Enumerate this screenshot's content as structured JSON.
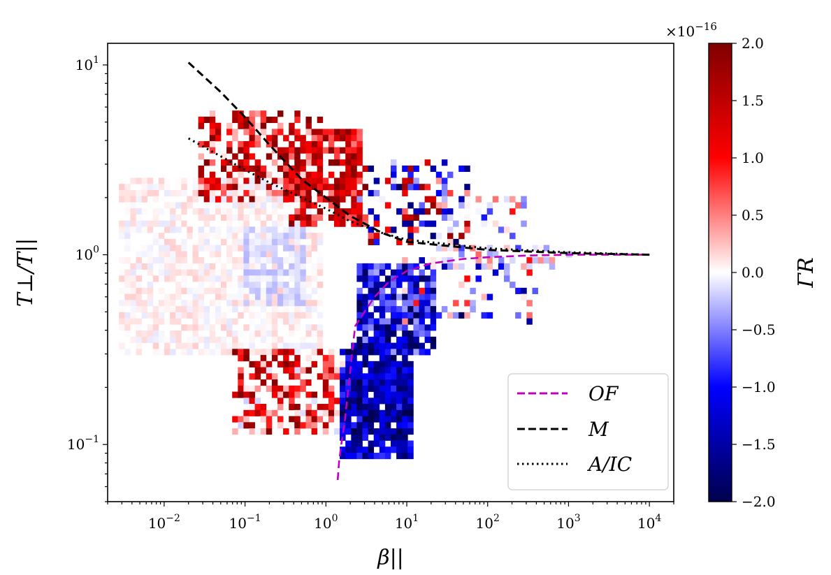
{
  "chart_data": {
    "type": "heatmap",
    "x_label": "β||",
    "y_label": "T⊥/T||",
    "x_scale": "log",
    "y_scale": "log",
    "xlim": [
      0.002,
      20000
    ],
    "ylim": [
      0.05,
      13
    ],
    "x_ticks": [
      {
        "value": 0.01,
        "base": "10",
        "exp": "−2"
      },
      {
        "value": 0.1,
        "base": "10",
        "exp": "−1"
      },
      {
        "value": 1,
        "base": "10",
        "exp": "0"
      },
      {
        "value": 10,
        "base": "10",
        "exp": "1"
      },
      {
        "value": 100,
        "base": "10",
        "exp": "2"
      },
      {
        "value": 1000,
        "base": "10",
        "exp": "3"
      },
      {
        "value": 10000,
        "base": "10",
        "exp": "4"
      }
    ],
    "y_ticks": [
      {
        "value": 0.1,
        "base": "10",
        "exp": "−1"
      },
      {
        "value": 1,
        "base": "10",
        "exp": "0"
      },
      {
        "value": 10,
        "base": "10",
        "exp": "1"
      }
    ],
    "colorbar": {
      "label": "ΓR",
      "scale_note_base": "×10",
      "scale_note_exp": "−16",
      "range": [
        -2.0,
        2.0
      ],
      "ticks": [
        "2.0",
        "1.5",
        "1.0",
        "0.5",
        "0.0",
        "−0.5",
        "−1.0",
        "−1.5",
        "−2.0"
      ],
      "colormap": "seismic",
      "colors": {
        "low": "#00004c",
        "mid_low": "#0000ff",
        "mid": "#ffffff",
        "mid_high": "#ff0000",
        "high": "#800000"
      }
    },
    "legend": {
      "placement": "lower-right",
      "entries": [
        {
          "label": "OF",
          "color": "#bf00bf",
          "style": "dashed"
        },
        {
          "label": "M",
          "color": "#000000",
          "style": "dashed"
        },
        {
          "label": "A/IC",
          "color": "#000000",
          "style": "dotted"
        }
      ]
    },
    "series": [
      {
        "name": "OF",
        "color": "#bf00bf",
        "style": "dashed",
        "points": [
          [
            1.4,
            0.065
          ],
          [
            1.45,
            0.08
          ],
          [
            1.55,
            0.1
          ],
          [
            1.7,
            0.13
          ],
          [
            1.9,
            0.2
          ],
          [
            2.1,
            0.3
          ],
          [
            2.3,
            0.42
          ],
          [
            3,
            0.5
          ],
          [
            4,
            0.6
          ],
          [
            6,
            0.72
          ],
          [
            10,
            0.82
          ],
          [
            20,
            0.9
          ],
          [
            50,
            0.95
          ],
          [
            100,
            0.97
          ],
          [
            300,
            0.99
          ],
          [
            1000,
            1.0
          ],
          [
            10000,
            1.0
          ]
        ]
      },
      {
        "name": "M",
        "color": "#000000",
        "style": "dashed",
        "points": [
          [
            0.02,
            10.3
          ],
          [
            0.05,
            7.2
          ],
          [
            0.1,
            5.3
          ],
          [
            0.2,
            3.8
          ],
          [
            0.5,
            2.5
          ],
          [
            1,
            2.0
          ],
          [
            2,
            1.6
          ],
          [
            5,
            1.3
          ],
          [
            10,
            1.17
          ],
          [
            100,
            1.06
          ],
          [
            1000,
            1.02
          ],
          [
            10000,
            1.0
          ]
        ]
      },
      {
        "name": "A/IC",
        "color": "#000000",
        "style": "dotted",
        "points": [
          [
            0.02,
            4.1
          ],
          [
            0.05,
            3.3
          ],
          [
            0.1,
            2.8
          ],
          [
            0.2,
            2.4
          ],
          [
            0.5,
            2.0
          ],
          [
            1,
            1.75
          ],
          [
            2,
            1.5
          ],
          [
            5,
            1.3
          ],
          [
            10,
            1.2
          ],
          [
            100,
            1.08
          ],
          [
            1000,
            1.03
          ],
          [
            10000,
            1.0
          ]
        ]
      }
    ],
    "heatmap_regions": [
      {
        "x": [
          0.003,
          0.8
        ],
        "y": [
          0.3,
          2.5
        ],
        "v": [
          -0.1,
          0.2
        ],
        "density": 0.7
      },
      {
        "x": [
          0.1,
          0.5
        ],
        "y": [
          0.55,
          1.4
        ],
        "v": [
          -0.3,
          0.0
        ],
        "density": 0.8
      },
      {
        "x": [
          0.03,
          0.9
        ],
        "y": [
          2.0,
          5.5
        ],
        "v": [
          0.1,
          2.0
        ],
        "density": 0.55
      },
      {
        "x": [
          0.4,
          2.5
        ],
        "y": [
          1.5,
          4.5
        ],
        "v": [
          0.5,
          2.0
        ],
        "density": 0.75
      },
      {
        "x": [
          2.5,
          60
        ],
        "y": [
          1.2,
          3.0
        ],
        "v": [
          -2.0,
          2.0
        ],
        "density": 0.35
      },
      {
        "x": [
          30,
          300
        ],
        "y": [
          1.0,
          2.0
        ],
        "v": [
          -1.0,
          1.0
        ],
        "density": 0.2
      },
      {
        "x": [
          0.08,
          1.5
        ],
        "y": [
          0.12,
          0.3
        ],
        "v": [
          -0.3,
          2.0
        ],
        "density": 0.55
      },
      {
        "x": [
          1.5,
          12
        ],
        "y": [
          0.09,
          0.32
        ],
        "v": [
          -2.0,
          -0.8
        ],
        "density": 0.9
      },
      {
        "x": [
          2.5,
          20
        ],
        "y": [
          0.3,
          0.85
        ],
        "v": [
          -2.0,
          -0.3
        ],
        "density": 0.85
      },
      {
        "x": [
          10,
          400
        ],
        "y": [
          0.45,
          0.95
        ],
        "v": [
          -2.0,
          1.0
        ],
        "density": 0.2
      },
      {
        "x": [
          20,
          1000
        ],
        "y": [
          0.9,
          1.05
        ],
        "v": [
          -0.5,
          0.5
        ],
        "density": 0.35
      }
    ]
  }
}
